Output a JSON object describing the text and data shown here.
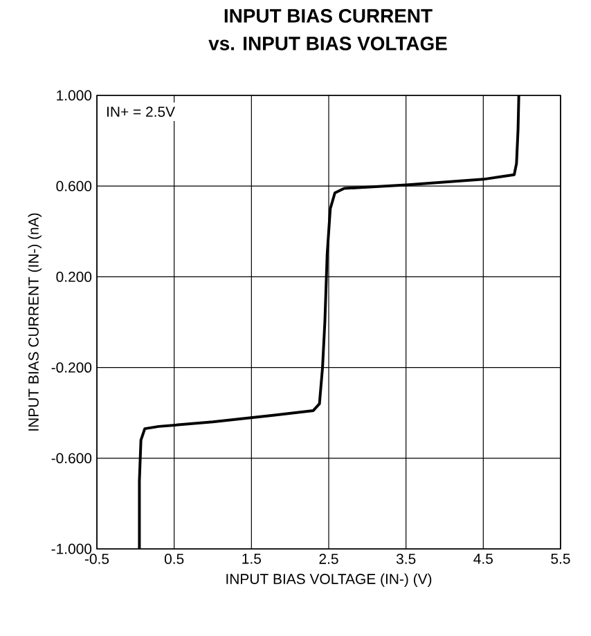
{
  "chart_data": {
    "type": "line",
    "title": "INPUT BIAS CURRENT",
    "subtitle": "vs. INPUT BIAS VOLTAGE",
    "xlabel": "INPUT BIAS VOLTAGE (IN-) (V)",
    "ylabel": "INPUT BIAS CURRENT (IN-) (nA)",
    "annotations": [
      "IN+ = 2.5V"
    ],
    "series": [
      {
        "color": "#000000",
        "x": [
          0.05,
          0.05,
          0.07,
          0.12,
          0.3,
          1.0,
          1.8,
          2.3,
          2.38,
          2.42,
          2.45,
          2.48,
          2.52,
          2.58,
          2.7,
          3.5,
          4.5,
          4.9,
          4.93,
          4.95,
          4.96
        ],
        "values": [
          -1.0,
          -0.7,
          -0.52,
          -0.47,
          -0.46,
          -0.44,
          -0.41,
          -0.39,
          -0.36,
          -0.2,
          0.0,
          0.3,
          0.5,
          0.57,
          0.59,
          0.605,
          0.63,
          0.65,
          0.7,
          0.85,
          1.0
        ]
      }
    ],
    "xlim": [
      -0.5,
      5.5
    ],
    "xticks": [
      -0.5,
      0.5,
      1.5,
      2.5,
      3.5,
      4.5,
      5.5
    ],
    "ylim": [
      -1.0,
      1.0
    ],
    "yticks": [
      {
        "value": -1.0,
        "label": "-1.000"
      },
      {
        "value": -0.6,
        "label": "-0.600"
      },
      {
        "value": -0.2,
        "label": "-0.200"
      },
      {
        "value": 0.2,
        "label": "0.200"
      },
      {
        "value": 0.6,
        "label": "0.600"
      },
      {
        "value": 1.0,
        "label": "1.000"
      }
    ],
    "grid": true,
    "line_style": "solid",
    "marker": "none"
  }
}
